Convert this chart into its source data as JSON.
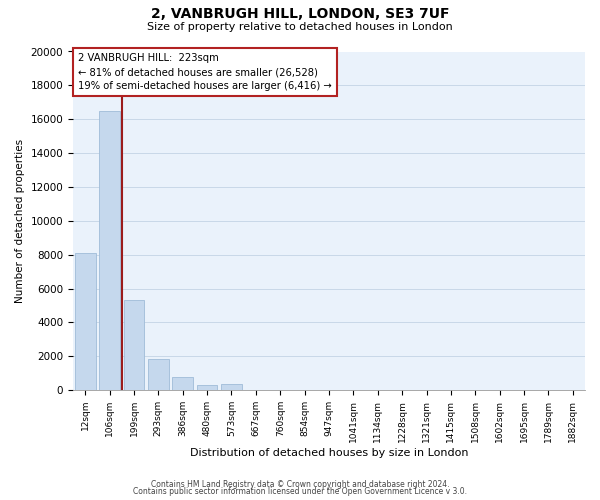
{
  "title": "2, VANBRUGH HILL, LONDON, SE3 7UF",
  "subtitle": "Size of property relative to detached houses in London",
  "xlabel": "Distribution of detached houses by size in London",
  "ylabel": "Number of detached properties",
  "categories": [
    "12sqm",
    "106sqm",
    "199sqm",
    "293sqm",
    "386sqm",
    "480sqm",
    "573sqm",
    "667sqm",
    "760sqm",
    "854sqm",
    "947sqm",
    "1041sqm",
    "1134sqm",
    "1228sqm",
    "1321sqm",
    "1415sqm",
    "1508sqm",
    "1602sqm",
    "1695sqm",
    "1789sqm",
    "1882sqm"
  ],
  "values": [
    8100,
    16500,
    5300,
    1850,
    780,
    280,
    350,
    0,
    0,
    0,
    0,
    0,
    0,
    0,
    0,
    0,
    0,
    0,
    0,
    0,
    0
  ],
  "bar_color": "#c5d8ed",
  "bar_edge_color": "#a0bcd8",
  "marker_line_color": "#9b1c1c",
  "annotation_line1": "2 VANBRUGH HILL:  223sqm",
  "annotation_line2": "← 81% of detached houses are smaller (26,528)",
  "annotation_line3": "19% of semi-detached houses are larger (6,416) →",
  "annotation_box_color": "#ffffff",
  "annotation_box_edge_color": "#b22222",
  "ylim": [
    0,
    20000
  ],
  "yticks": [
    0,
    2000,
    4000,
    6000,
    8000,
    10000,
    12000,
    14000,
    16000,
    18000,
    20000
  ],
  "footer1": "Contains HM Land Registry data © Crown copyright and database right 2024.",
  "footer2": "Contains public sector information licensed under the Open Government Licence v 3.0.",
  "background_color": "#ffffff",
  "grid_color": "#c8d8e8",
  "plot_bg_color": "#eaf2fb"
}
